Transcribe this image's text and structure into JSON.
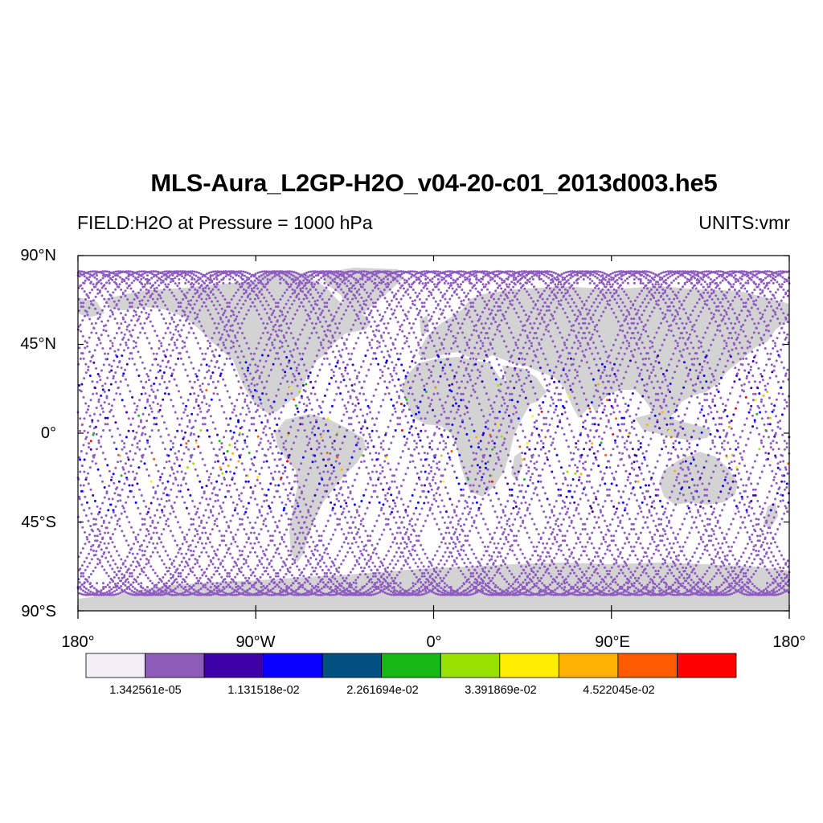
{
  "title": "MLS-Aura_L2GP-H2O_v04-20-c01_2013d003.he5",
  "field_label": "FIELD:H2O at Pressure = 1000 hPa",
  "units_label": "UNITS:vmr",
  "map": {
    "projection": "cylindrical equidistant",
    "lon_range": [
      -180,
      180
    ],
    "lat_range": [
      -90,
      90
    ],
    "land_color": "#d3d3d3",
    "y_ticks": [
      {
        "value": 90,
        "label": "90°N"
      },
      {
        "value": 45,
        "label": "45°N"
      },
      {
        "value": 0,
        "label": "0°"
      },
      {
        "value": -45,
        "label": "45°S"
      },
      {
        "value": -90,
        "label": "90°S"
      }
    ],
    "x_ticks": [
      {
        "value": -180,
        "label": "180°"
      },
      {
        "value": -90,
        "label": "90°W"
      },
      {
        "value": 0,
        "label": "0°"
      },
      {
        "value": 90,
        "label": "90°E"
      },
      {
        "value": 180,
        "label": "180°"
      }
    ],
    "orbit_track_color": "#8e5bc0",
    "orbit_tracks": "sinusoidal MLS ground tracks, ~15 orbits, turning near ±82° latitude"
  },
  "colorbar": {
    "colors": [
      "#f2eef6",
      "#8e5bb8",
      "#3e00a8",
      "#0a00ff",
      "#005082",
      "#16b816",
      "#98e000",
      "#ffee00",
      "#ffb000",
      "#ff5a00",
      "#ff0000"
    ],
    "labels": [
      "1.342561e-05",
      "1.131518e-02",
      "2.261694e-02",
      "3.391869e-02",
      "4.522045e-02"
    ]
  }
}
